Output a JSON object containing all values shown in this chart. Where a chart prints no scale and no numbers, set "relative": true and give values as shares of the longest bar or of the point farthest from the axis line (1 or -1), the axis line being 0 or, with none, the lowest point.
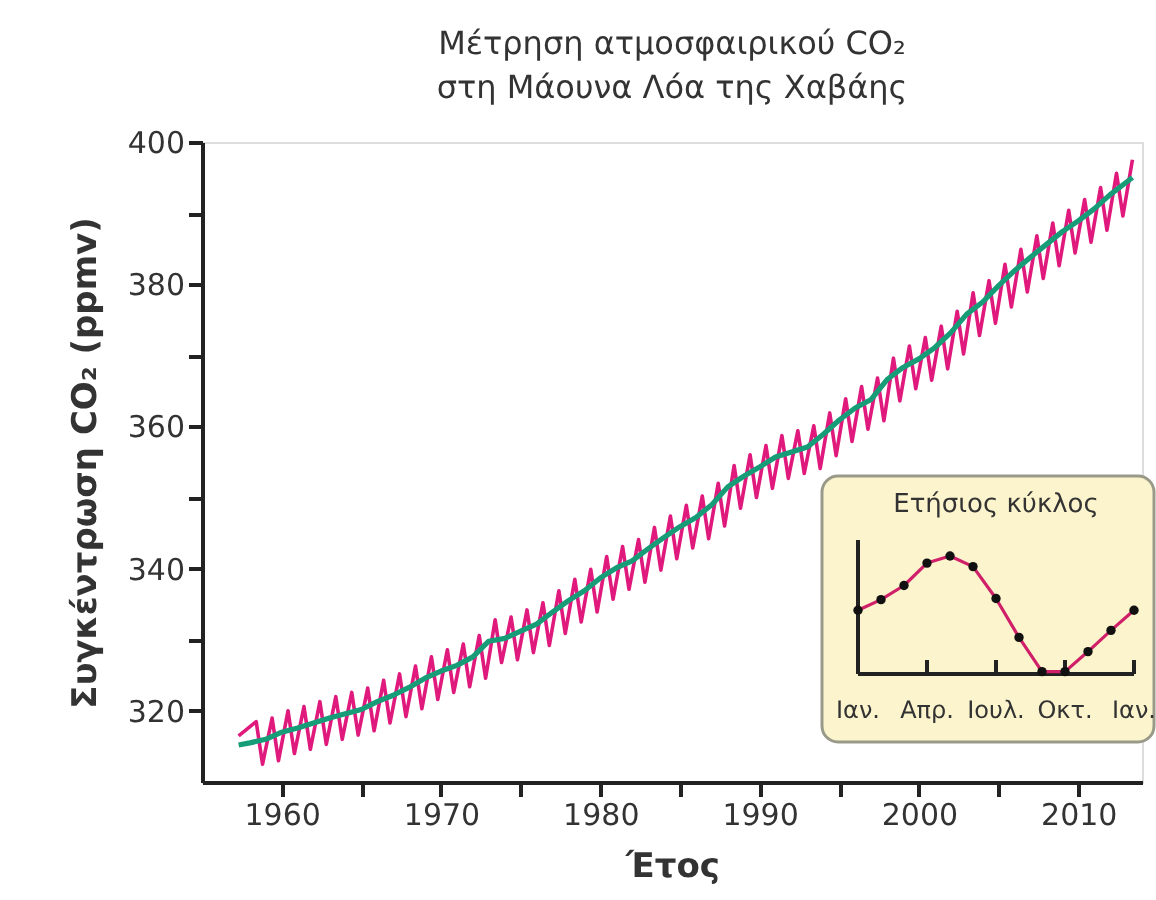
{
  "chart_data": [
    {
      "type": "line",
      "title": "Μέτρηση ατμοσφαιρικού CO₂\nστη Μάουνα Λόα της Χαβάης",
      "xlabel": "Έτος",
      "ylabel": "Συγκέντρωση CO₂ (ppmv)",
      "xlim": [
        1955,
        2014
      ],
      "ylim": [
        310,
        400
      ],
      "xticks": [
        1960,
        {
          "value": 1965,
          "label": null
        },
        1970,
        {
          "value": 1975,
          "label": null
        },
        1980,
        {
          "value": 1985,
          "label": null
        },
        1990,
        {
          "value": 1995,
          "label": null
        },
        2000,
        {
          "value": 2005,
          "label": null
        },
        2010
      ],
      "yticks": [
        320,
        {
          "value": 330,
          "label": null
        },
        340,
        {
          "value": 350,
          "label": null
        },
        360,
        {
          "value": 370,
          "label": null
        },
        380,
        {
          "value": 390,
          "label": null
        },
        400
      ],
      "marker": "none",
      "line_style": "solid",
      "series": [
        {
          "type": "line",
          "color": "#e0197d",
          "x": [
            1957.3,
            1958.4,
            1958.8,
            1959.4,
            1959.8,
            1960.4,
            1960.8,
            1961.4,
            1961.8,
            1962.4,
            1962.8,
            1963.4,
            1963.8,
            1964.4,
            1964.8,
            1965.4,
            1965.8,
            1966.4,
            1966.8,
            1967.4,
            1967.8,
            1968.4,
            1968.8,
            1969.4,
            1969.8,
            1970.4,
            1970.8,
            1971.4,
            1971.8,
            1972.4,
            1972.8,
            1973.4,
            1973.8,
            1974.4,
            1974.8,
            1975.4,
            1975.8,
            1976.4,
            1976.8,
            1977.4,
            1977.8,
            1978.4,
            1978.8,
            1979.4,
            1979.8,
            1980.4,
            1980.8,
            1981.4,
            1981.8,
            1982.4,
            1982.8,
            1983.4,
            1983.8,
            1984.4,
            1984.8,
            1985.4,
            1985.8,
            1986.4,
            1986.8,
            1987.4,
            1987.8,
            1988.4,
            1988.8,
            1989.4,
            1989.8,
            1990.4,
            1990.8,
            1991.4,
            1991.8,
            1992.4,
            1992.8,
            1993.4,
            1993.8,
            1994.4,
            1994.8,
            1995.4,
            1995.8,
            1996.4,
            1996.8,
            1997.4,
            1997.8,
            1998.4,
            1998.8,
            1999.4,
            1999.8,
            2000.4,
            2000.8,
            2001.4,
            2001.8,
            2002.4,
            2002.8,
            2003.4,
            2003.8,
            2004.4,
            2004.8,
            2005.4,
            2005.8,
            2006.4,
            2006.8,
            2007.4,
            2007.8,
            2008.4,
            2008.8,
            2009.4,
            2009.8,
            2010.4,
            2010.8,
            2011.4,
            2011.8,
            2012.4,
            2012.8,
            2013.4
          ],
          "values": [
            316.5,
            318.5,
            312.5,
            319,
            313,
            320,
            314,
            320.6,
            314.6,
            321.3,
            315.3,
            322,
            316,
            322.6,
            316.6,
            323.2,
            317.2,
            324.3,
            318.3,
            325.2,
            319.2,
            326.3,
            320.3,
            327.6,
            321.6,
            328.6,
            322.6,
            329.4,
            323.4,
            330.6,
            324.6,
            332.8,
            326.8,
            333.2,
            327.2,
            334.2,
            328.2,
            335.2,
            329.2,
            336.9,
            330.9,
            338.5,
            332.5,
            339.9,
            333.9,
            341.7,
            335.7,
            343.1,
            337.1,
            344.1,
            338.1,
            345.8,
            339.8,
            347.4,
            341.4,
            348.9,
            342.9,
            350.2,
            344.2,
            352,
            346,
            354.5,
            348.5,
            356,
            350,
            357.3,
            351.3,
            358.7,
            352.7,
            359.4,
            353.4,
            360.1,
            354.1,
            361.9,
            355.9,
            363.9,
            357.9,
            365.6,
            359.6,
            366.8,
            360.8,
            369.6,
            363.6,
            371.3,
            365.3,
            372.5,
            366.5,
            374.1,
            368.1,
            376.2,
            370.2,
            378.8,
            372.8,
            380.5,
            374.5,
            382.8,
            376.8,
            384.9,
            378.9,
            386.8,
            380.8,
            388.6,
            382.6,
            390.4,
            384.4,
            391.9,
            385.9,
            393.6,
            387.6,
            395.6,
            389.6,
            397.5
          ]
        },
        {
          "type": "line",
          "color": "#179c78",
          "x": [
            1957.3,
            1958,
            1959,
            1960,
            1961,
            1962,
            1963,
            1964,
            1965,
            1966,
            1967,
            1968,
            1969,
            1970,
            1971,
            1972,
            1973,
            1974,
            1975,
            1976,
            1977,
            1978,
            1979,
            1980,
            1981,
            1982,
            1983,
            1984,
            1985,
            1986,
            1987,
            1988,
            1989,
            1990,
            1991,
            1992,
            1993,
            1994,
            1995,
            1996,
            1997,
            1998,
            1999,
            2000,
            2001,
            2002,
            2003,
            2004,
            2005,
            2006,
            2007,
            2008,
            2009,
            2010,
            2011,
            2012,
            2013,
            2013.4
          ],
          "values": [
            315.2,
            315.5,
            316,
            317,
            317.6,
            318.3,
            319,
            319.6,
            320.2,
            321.3,
            322.2,
            323.3,
            324.6,
            325.6,
            326.4,
            327.6,
            329.8,
            330.2,
            331.2,
            332.2,
            333.9,
            335.5,
            336.9,
            338.7,
            340.1,
            341.1,
            342.8,
            344.4,
            345.9,
            347.2,
            349,
            351.5,
            353,
            354.3,
            355.7,
            356.4,
            357.1,
            358.9,
            360.9,
            362.6,
            363.8,
            366.6,
            368.3,
            369.5,
            371.1,
            373.2,
            375.8,
            377.5,
            379.8,
            381.9,
            383.8,
            385.6,
            387.4,
            388.9,
            390.6,
            392.6,
            394.3,
            395
          ]
        }
      ]
    },
    {
      "type": "line",
      "title": "Ετήσιος κύκλος",
      "relative": true,
      "marker": "circle",
      "color": "#d0206a",
      "tick_labels": "x",
      "categories": [
        "Ιαν.",
        null,
        null,
        "Απρ.",
        null,
        null,
        "Ιουλ.",
        null,
        null,
        "Οκτ.",
        null,
        null,
        "Ιαν."
      ],
      "values": [
        0.54,
        0.63,
        0.75,
        0.94,
        1,
        0.91,
        0.64,
        0.31,
        0.02,
        0.02,
        0.19,
        0.37,
        0.54
      ]
    }
  ]
}
